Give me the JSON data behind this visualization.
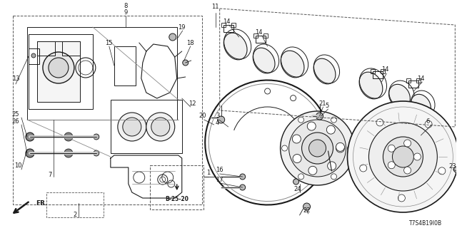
{
  "bg_color": "#ffffff",
  "diagram_code": "T7S4B19I0B",
  "ref_code": "B-25-20",
  "line_color": "#1a1a1a",
  "gray": "#888888",
  "dkgray": "#555555",
  "fig_w": 6.4,
  "fig_h": 3.2
}
